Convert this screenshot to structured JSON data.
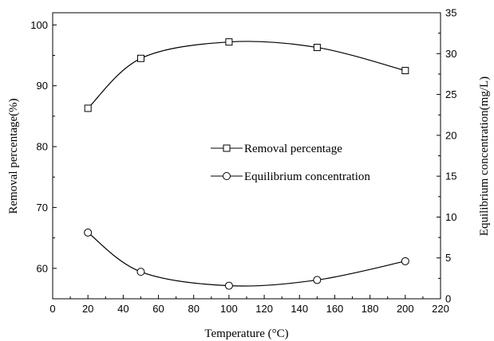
{
  "chart_data": {
    "type": "scatter",
    "xlabel": "Temperature (°C)",
    "ylabel_left": "Removal percentage(%)",
    "ylabel_right": "Equilibrium concentration(mg/L)",
    "xlim": [
      0,
      220
    ],
    "ylim_left": [
      55,
      102
    ],
    "ylim_right": [
      0,
      35
    ],
    "x_ticks": [
      0,
      20,
      40,
      60,
      80,
      100,
      120,
      140,
      160,
      180,
      200,
      220
    ],
    "y_left_ticks": [
      60,
      70,
      80,
      90,
      100
    ],
    "y_right_ticks": [
      0,
      5,
      10,
      15,
      20,
      25,
      30,
      35
    ],
    "grid": false,
    "legend_position": "center-right",
    "series": [
      {
        "name": "Removal percentage",
        "axis": "left",
        "marker": "square",
        "x": [
          20,
          50,
          100,
          150,
          200
        ],
        "y": [
          86.3,
          94.5,
          97.2,
          96.3,
          92.5
        ]
      },
      {
        "name": "Equilibrium concentration",
        "axis": "right",
        "marker": "circle",
        "x": [
          20,
          50,
          100,
          150,
          200
        ],
        "y": [
          8.1,
          3.3,
          1.6,
          2.3,
          4.6
        ]
      }
    ]
  }
}
